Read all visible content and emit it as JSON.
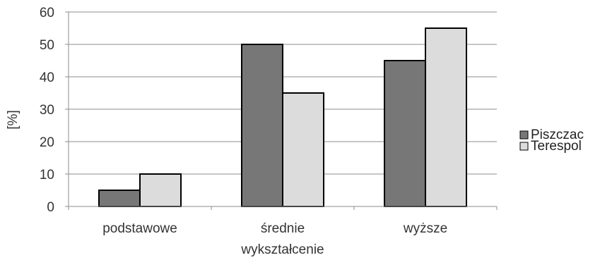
{
  "chart_data": {
    "type": "bar",
    "title": "",
    "xlabel": "wykształcenie",
    "ylabel": "[%]",
    "ylim": [
      0,
      60
    ],
    "yticks": [
      "0",
      "10",
      "20",
      "30",
      "40",
      "50",
      "60"
    ],
    "categories": [
      "podstawowe",
      "średnie",
      "wyższe"
    ],
    "series": [
      {
        "name": "Piszczac",
        "values": [
          5,
          50,
          45
        ],
        "color": "#777777"
      },
      {
        "name": "Terespol",
        "values": [
          10,
          35,
          55
        ],
        "color": "#dcdcdc"
      }
    ],
    "grid": true,
    "legend_position": "right"
  }
}
